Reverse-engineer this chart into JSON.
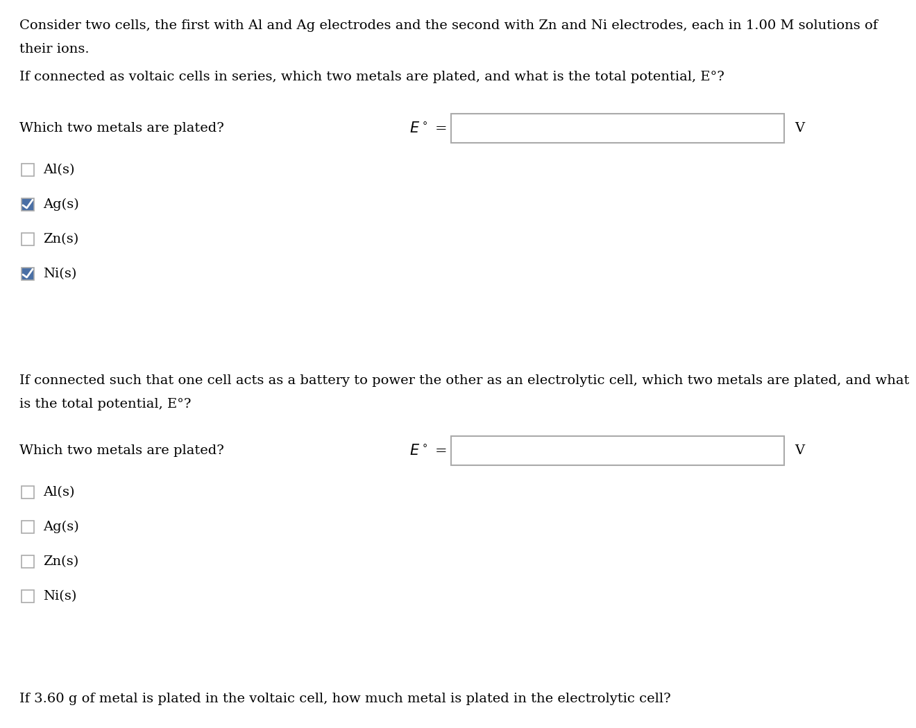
{
  "bg_color": "#ffffff",
  "text_color": "#000000",
  "font_family": "DejaVu Serif",
  "intro_text_line1": "Consider two cells, the first with Al and Ag electrodes and the second with Zn and Ni electrodes, each in 1.00 M solutions of",
  "intro_text_line2": "their ions.",
  "question1": "If connected as voltaic cells in series, which two metals are plated, and what is the total potential, E°?",
  "which_metals_label": "Which two metals are plated?",
  "section1_checkboxes": [
    {
      "label": "Al(s)",
      "checked": false
    },
    {
      "label": "Ag(s)",
      "checked": true
    },
    {
      "label": "Zn(s)",
      "checked": false
    },
    {
      "label": "Ni(s)",
      "checked": true
    }
  ],
  "question2_line1": "If connected such that one cell acts as a battery to power the other as an electrolytic cell, which two metals are plated, and what",
  "question2_line2": "is the total potential, E°?",
  "section2_checkboxes": [
    {
      "label": "Al(s)",
      "checked": false
    },
    {
      "label": "Ag(s)",
      "checked": false
    },
    {
      "label": "Zn(s)",
      "checked": false
    },
    {
      "label": "Ni(s)",
      "checked": false
    }
  ],
  "final_question": "If 3.60 g of metal is plated in the voltaic cell, how much metal is plated in the electrolytic cell?",
  "checkbox_color_checked": "#4a6fa5",
  "checkbox_color_unchecked": "#ffffff",
  "checkbox_border_color": "#aaaaaa",
  "input_box_color": "#ffffff",
  "input_box_border": "#aaaaaa",
  "fontsize_main": 14,
  "fontsize_label": 14
}
